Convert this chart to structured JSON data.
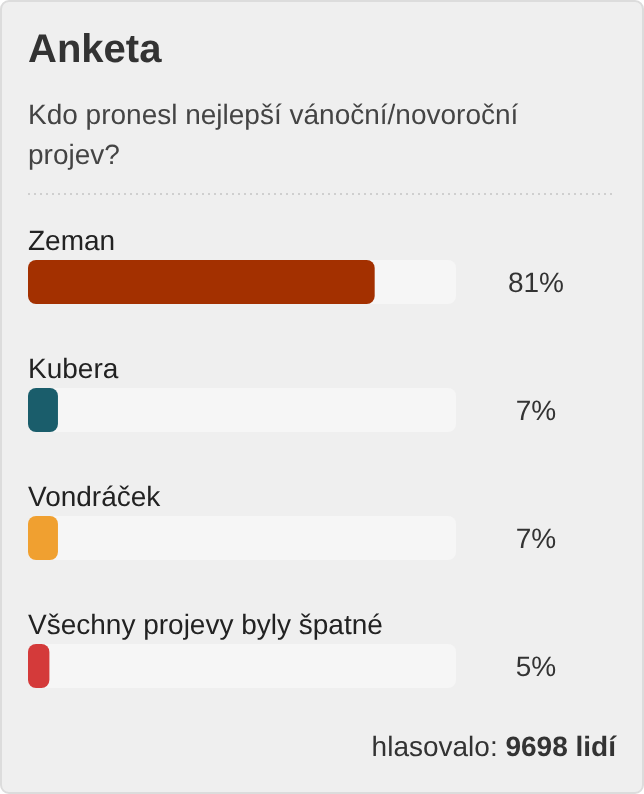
{
  "chart_data": {
    "type": "bar",
    "orientation": "horizontal",
    "title": "Anketa",
    "subtitle": "Kdo pronesl nejlepší vánoční/novoroční projev?",
    "categories": [
      "Zeman",
      "Kubera",
      "Vondráček",
      "Všechny projevy byly špatné"
    ],
    "values": [
      81,
      7,
      7,
      5
    ],
    "colors": [
      "#a33000",
      "#1a5d6b",
      "#f0a030",
      "#d43a3a"
    ],
    "value_labels": [
      "81%",
      "7%",
      "7%",
      "5%"
    ],
    "xlim": [
      0,
      100
    ],
    "annotations": [
      "hlasovalo: 9698 lidí"
    ]
  }
}
